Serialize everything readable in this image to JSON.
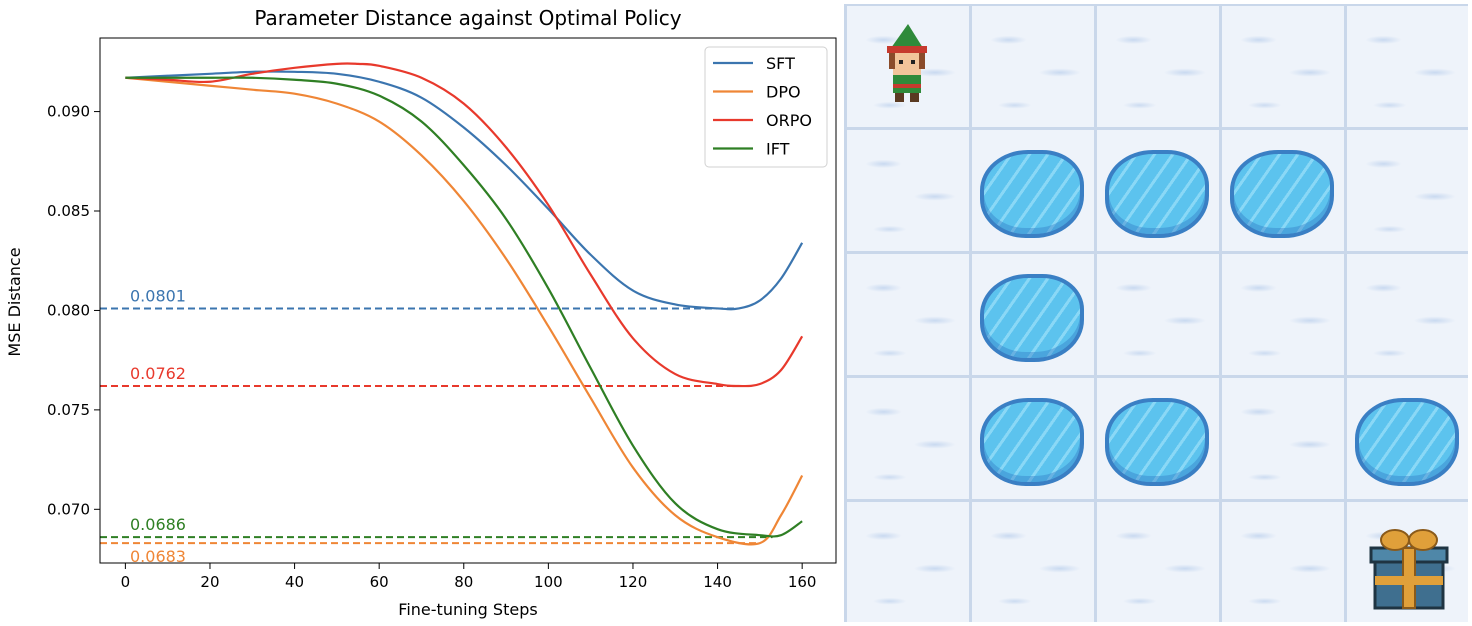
{
  "chart_data": {
    "type": "line",
    "title": "Parameter Distance against Optimal Policy",
    "xlabel": "Fine-tuning Steps",
    "ylabel": "MSE Distance",
    "xlim": [
      -6,
      168
    ],
    "ylim": [
      0.0673,
      0.0937
    ],
    "xticks": [
      0,
      20,
      40,
      60,
      80,
      100,
      120,
      140,
      160
    ],
    "yticks": [
      0.07,
      0.075,
      0.08,
      0.085,
      0.09
    ],
    "ytick_labels": [
      "0.070",
      "0.075",
      "0.080",
      "0.085",
      "0.090"
    ],
    "legend_position": "top-right",
    "grid": false,
    "series": [
      {
        "name": "SFT",
        "color": "#3b75af",
        "x": [
          0,
          10,
          20,
          30,
          40,
          50,
          60,
          70,
          80,
          90,
          100,
          110,
          120,
          130,
          140,
          145,
          150,
          155,
          160
        ],
        "y": [
          0.0917,
          0.0918,
          0.0919,
          0.092,
          0.092,
          0.0919,
          0.0915,
          0.0907,
          0.0892,
          0.0873,
          0.0851,
          0.0828,
          0.081,
          0.0803,
          0.0801,
          0.0801,
          0.0805,
          0.0816,
          0.0834
        ]
      },
      {
        "name": "DPO",
        "color": "#ef8636",
        "x": [
          0,
          10,
          20,
          30,
          40,
          50,
          60,
          70,
          80,
          90,
          100,
          110,
          120,
          130,
          140,
          150,
          155,
          160
        ],
        "y": [
          0.0917,
          0.0915,
          0.0913,
          0.0911,
          0.0909,
          0.0904,
          0.0895,
          0.0878,
          0.0855,
          0.0826,
          0.0792,
          0.0756,
          0.0721,
          0.0697,
          0.0686,
          0.0683,
          0.0697,
          0.0717
        ]
      },
      {
        "name": "ORPO",
        "color": "#e8392c",
        "x": [
          0,
          10,
          20,
          30,
          40,
          50,
          55,
          60,
          70,
          80,
          90,
          100,
          110,
          120,
          130,
          140,
          145,
          150,
          155,
          160
        ],
        "y": [
          0.0917,
          0.0916,
          0.0915,
          0.0919,
          0.0922,
          0.0924,
          0.0924,
          0.0923,
          0.0917,
          0.0904,
          0.0882,
          0.0853,
          0.0818,
          0.0786,
          0.0768,
          0.0763,
          0.0762,
          0.0763,
          0.077,
          0.0787
        ]
      },
      {
        "name": "IFT",
        "color": "#2f7f24",
        "x": [
          0,
          10,
          20,
          30,
          40,
          50,
          60,
          70,
          80,
          90,
          100,
          110,
          120,
          130,
          140,
          150,
          155,
          160
        ],
        "y": [
          0.0917,
          0.0917,
          0.0917,
          0.0917,
          0.0916,
          0.0914,
          0.0908,
          0.0895,
          0.0873,
          0.0846,
          0.0811,
          0.0771,
          0.0732,
          0.0703,
          0.069,
          0.0687,
          0.0687,
          0.0694
        ]
      }
    ],
    "reference_lines": [
      {
        "value": 0.0801,
        "label": "0.0801",
        "color": "#3b75af",
        "x_end": 145
      },
      {
        "value": 0.0762,
        "label": "0.0762",
        "color": "#e8392c",
        "x_end": 145
      },
      {
        "value": 0.0686,
        "label": "0.0686",
        "color": "#2f7f24",
        "x_end": 153
      },
      {
        "value": 0.0683,
        "label": "0.0683",
        "color": "#ef8636",
        "x_end": 150
      }
    ]
  },
  "frozen_lake": {
    "rows": 5,
    "cols": 5,
    "agent": [
      0,
      0
    ],
    "goal": [
      4,
      4
    ],
    "holes": [
      [
        1,
        1
      ],
      [
        1,
        2
      ],
      [
        1,
        3
      ],
      [
        2,
        1
      ],
      [
        3,
        1
      ],
      [
        3,
        2
      ],
      [
        3,
        4
      ]
    ],
    "icons": {
      "agent": "elf-character-icon",
      "goal": "gift-box-icon",
      "hole": "ice-hole-icon"
    }
  }
}
